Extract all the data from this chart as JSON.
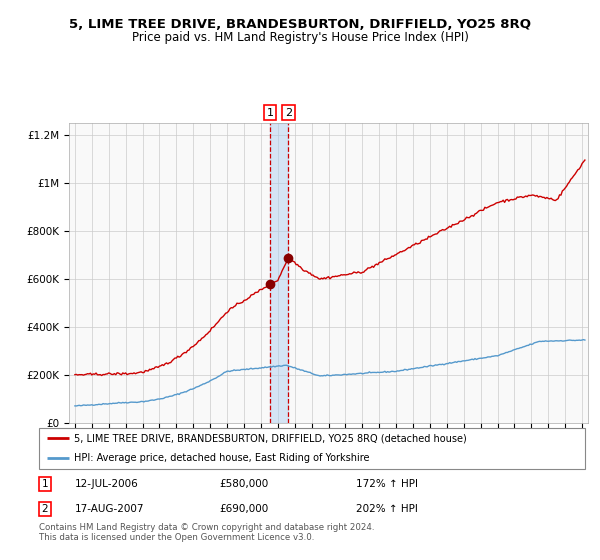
{
  "title": "5, LIME TREE DRIVE, BRANDESBURTON, DRIFFIELD, YO25 8RQ",
  "subtitle": "Price paid vs. HM Land Registry's House Price Index (HPI)",
  "legend_line1": "5, LIME TREE DRIVE, BRANDESBURTON, DRIFFIELD, YO25 8RQ (detached house)",
  "legend_line2": "HPI: Average price, detached house, East Riding of Yorkshire",
  "footnote": "Contains HM Land Registry data © Crown copyright and database right 2024.\nThis data is licensed under the Open Government Licence v3.0.",
  "transaction1_date": "12-JUL-2006",
  "transaction1_price": 580000,
  "transaction1_hpi": "172% ↑ HPI",
  "transaction2_date": "17-AUG-2007",
  "transaction2_price": 690000,
  "transaction2_hpi": "202% ↑ HPI",
  "red_line_color": "#cc0000",
  "blue_line_color": "#5599cc",
  "marker_color": "#880000",
  "dashed_color": "#cc0000",
  "shaded_color": "#aaccee",
  "background_color": "#ffffff",
  "grid_color": "#cccccc",
  "chart_bg_color": "#f9f9f9",
  "ylim": [
    0,
    1250000
  ],
  "yticks": [
    0,
    200000,
    400000,
    600000,
    800000,
    1000000,
    1200000
  ],
  "ytick_labels": [
    "£0",
    "£200K",
    "£400K",
    "£600K",
    "£800K",
    "£1M",
    "£1.2M"
  ],
  "xstart_year": 1995,
  "xend_year": 2025
}
